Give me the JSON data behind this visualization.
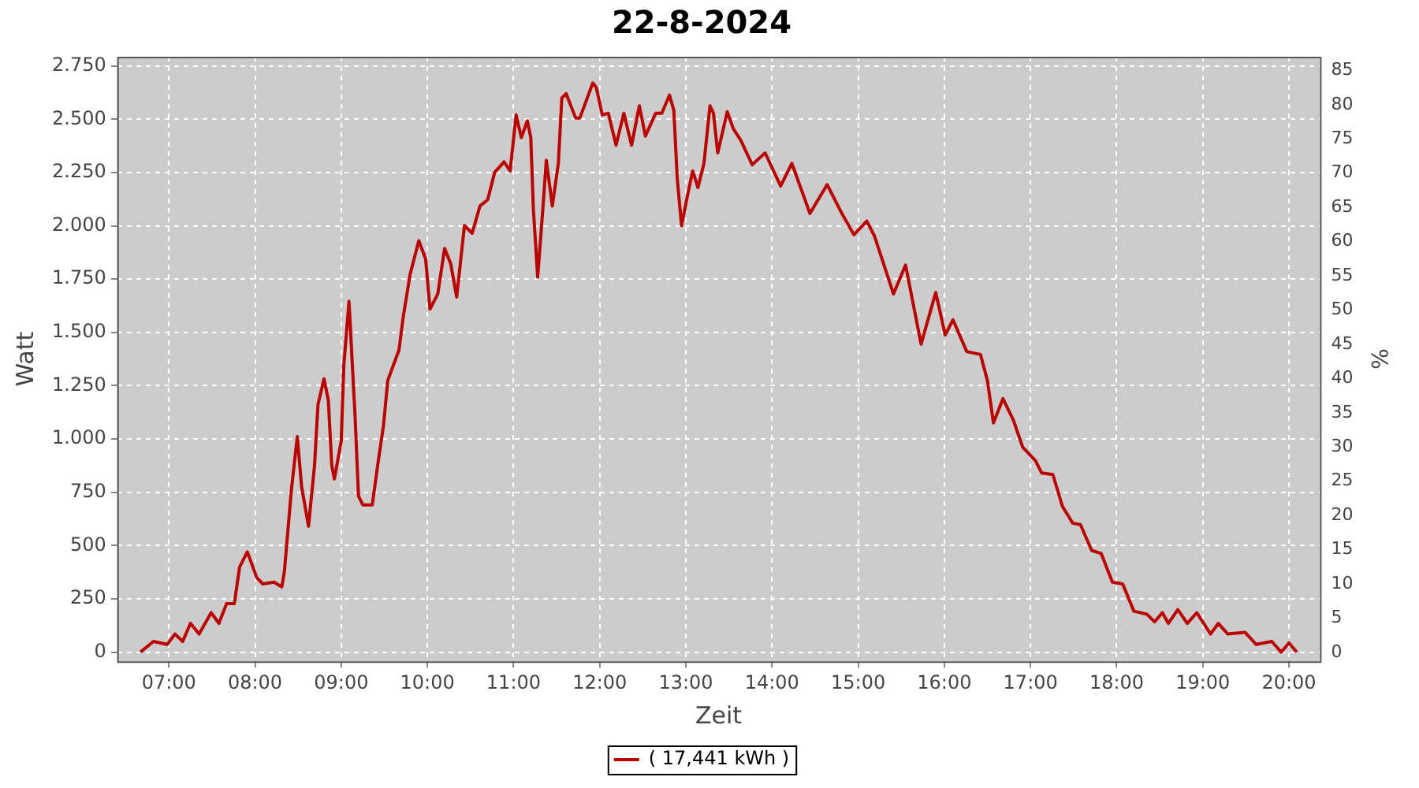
{
  "chart_data": {
    "type": "line",
    "title": "22-8-2024",
    "xlabel": "Zeit",
    "ylabel": "Watt",
    "y2label": "%",
    "xlim": [
      6.4,
      20.36
    ],
    "xticks": [
      {
        "value": 7,
        "label": "07:00"
      },
      {
        "value": 8,
        "label": "08:00"
      },
      {
        "value": 9,
        "label": "09:00"
      },
      {
        "value": 10,
        "label": "10:00"
      },
      {
        "value": 11,
        "label": "11:00"
      },
      {
        "value": 12,
        "label": "12:00"
      },
      {
        "value": 13,
        "label": "13:00"
      },
      {
        "value": 14,
        "label": "14:00"
      },
      {
        "value": 15,
        "label": "15:00"
      },
      {
        "value": 16,
        "label": "16:00"
      },
      {
        "value": 17,
        "label": "17:00"
      },
      {
        "value": 18,
        "label": "18:00"
      },
      {
        "value": 19,
        "label": "19:00"
      },
      {
        "value": 20,
        "label": "20:00"
      }
    ],
    "ylim": [
      -43,
      2793
    ],
    "yticks": [
      0,
      250,
      500,
      750,
      {
        "value": 1000,
        "label": "1.000"
      },
      {
        "value": 1250,
        "label": "1.250"
      },
      {
        "value": 1500,
        "label": "1.500"
      },
      {
        "value": 1750,
        "label": "1.750"
      },
      {
        "value": 2000,
        "label": "2.000"
      },
      {
        "value": 2250,
        "label": "2.250"
      },
      {
        "value": 2500,
        "label": "2.500"
      },
      {
        "value": 2750,
        "label": "2.750"
      }
    ],
    "y2lim": [
      -1.3,
      87
    ],
    "y2ticks": [
      0,
      5,
      10,
      15,
      20,
      25,
      30,
      35,
      40,
      45,
      50,
      55,
      60,
      65,
      70,
      75,
      80,
      85
    ],
    "grid": true,
    "legend": "bottom",
    "marker": "none",
    "line_style": "solid",
    "series": [
      {
        "name": "( 17,441 kWh )",
        "color": "#bb0000",
        "x": [
          6.67,
          6.82,
          6.98,
          7.07,
          7.16,
          7.25,
          7.35,
          7.49,
          7.58,
          7.67,
          7.76,
          7.82,
          7.91,
          8.02,
          8.09,
          8.22,
          8.31,
          8.34,
          8.42,
          8.49,
          8.54,
          8.62,
          8.69,
          8.73,
          8.8,
          8.85,
          8.89,
          8.92,
          9.0,
          9.03,
          9.09,
          9.16,
          9.2,
          9.25,
          9.36,
          9.43,
          9.49,
          9.54,
          9.67,
          9.72,
          9.8,
          9.9,
          9.98,
          10.03,
          10.12,
          10.2,
          10.27,
          10.34,
          10.43,
          10.52,
          10.61,
          10.7,
          10.78,
          10.89,
          10.96,
          11.03,
          11.09,
          11.16,
          11.2,
          11.23,
          11.28,
          11.34,
          11.38,
          11.45,
          11.52,
          11.56,
          11.61,
          11.72,
          11.77,
          11.92,
          11.96,
          12.03,
          12.1,
          12.19,
          12.28,
          12.37,
          12.46,
          12.53,
          12.65,
          12.72,
          12.81,
          12.86,
          12.9,
          12.95,
          13.03,
          13.08,
          13.14,
          13.21,
          13.28,
          13.32,
          13.37,
          13.48,
          13.55,
          13.64,
          13.77,
          13.92,
          14.1,
          14.23,
          14.44,
          14.64,
          14.81,
          14.95,
          15.1,
          15.19,
          15.41,
          15.55,
          15.73,
          15.9,
          16.01,
          16.1,
          16.26,
          16.42,
          16.5,
          16.57,
          16.68,
          16.8,
          16.91,
          17.06,
          17.13,
          17.26,
          17.37,
          17.49,
          17.58,
          17.71,
          17.82,
          17.95,
          18.07,
          18.2,
          18.35,
          18.44,
          18.53,
          18.6,
          18.71,
          18.82,
          18.93,
          19.09,
          19.18,
          19.29,
          19.49,
          19.62,
          19.8,
          19.91,
          20.0,
          20.09
        ],
        "values": [
          0,
          50,
          36,
          85,
          50,
          135,
          85,
          185,
          135,
          228,
          228,
          399,
          470,
          349,
          320,
          328,
          306,
          377,
          755,
          1011,
          776,
          591,
          876,
          1161,
          1282,
          1182,
          876,
          812,
          990,
          1346,
          1645,
          1111,
          733,
          691,
          691,
          897,
          1061,
          1274,
          1417,
          1574,
          1773,
          1930,
          1844,
          1609,
          1680,
          1894,
          1823,
          1666,
          2001,
          1965,
          2093,
          2122,
          2250,
          2300,
          2257,
          2520,
          2414,
          2492,
          2414,
          2079,
          1759,
          2079,
          2307,
          2093,
          2293,
          2599,
          2620,
          2506,
          2506,
          2670,
          2649,
          2520,
          2528,
          2378,
          2528,
          2378,
          2563,
          2421,
          2528,
          2528,
          2613,
          2542,
          2221,
          2001,
          2164,
          2257,
          2179,
          2293,
          2563,
          2528,
          2342,
          2535,
          2456,
          2399,
          2286,
          2342,
          2186,
          2293,
          2058,
          2193,
          2058,
          1958,
          2022,
          1951,
          1680,
          1816,
          1445,
          1687,
          1488,
          1559,
          1410,
          1396,
          1274,
          1075,
          1189,
          1089,
          961,
          897,
          840,
          833,
          684,
          605,
          598,
          477,
          463,
          328,
          320,
          192,
          178,
          142,
          185,
          135,
          199,
          135,
          185,
          85,
          135,
          85,
          93,
          36,
          50,
          0,
          43,
          0
        ]
      }
    ]
  }
}
